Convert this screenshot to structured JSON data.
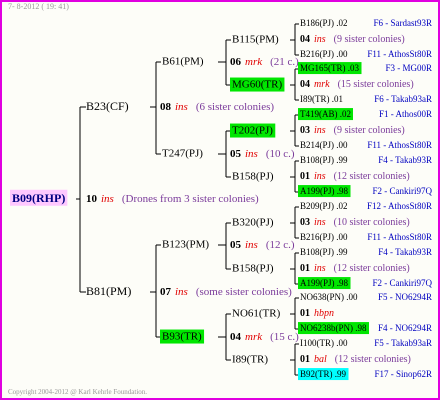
{
  "header": {
    "timestamp": "7- 8-2012 ( 19: 41)"
  },
  "root": {
    "label": "B09(RHP)",
    "highlight": "#ffc8ff",
    "count": "10",
    "type": "ins",
    "note": "(Drones from 3 sister colonies)"
  },
  "generation2": [
    {
      "label": "B23(CF)",
      "count": "08",
      "type": "ins",
      "note": "(6 sister colonies)"
    },
    {
      "label": "B81(PM)",
      "count": "07",
      "type": "ins",
      "note": "(some sister colonies)"
    }
  ],
  "generation3": [
    {
      "label": "B61(PM)",
      "count": "06",
      "type": "mrk",
      "note": "(21 c.)"
    },
    {
      "label": "T247(PJ)",
      "count": "05",
      "type": "ins",
      "note": "(10 c.)"
    },
    {
      "label": "B123(PM)",
      "count": "05",
      "type": "ins",
      "note": "(12 c.)"
    },
    {
      "label": "B93(TR)",
      "highlight": "#00e600",
      "count": "04",
      "type": "mrk",
      "note": "(15 c.)"
    }
  ],
  "generation4": [
    {
      "label": "B115(PM)"
    },
    {
      "label": "MG60(TR)",
      "highlight": "#00e600"
    },
    {
      "label": "T202(PJ)",
      "highlight": "#00e600"
    },
    {
      "label": "B158(PJ)"
    },
    {
      "label": "B320(PJ)"
    },
    {
      "label": "B158(PJ)"
    },
    {
      "label": "NO61(TR)"
    },
    {
      "label": "I89(TR)"
    }
  ],
  "generation5": [
    {
      "father": {
        "label": "B186(PJ) .02",
        "origin": "F6 - Sardast93R"
      },
      "count": "04",
      "type": "ins",
      "note": "(9 sister colonies)",
      "mother": {
        "label": "B216(PJ) .00",
        "origin": "F11 - AthosSt80R"
      }
    },
    {
      "father": {
        "label": "MG165(TR) .03",
        "highlight": "#00e600",
        "origin": "F3 - MG00R"
      },
      "count": "04",
      "type": "mrk",
      "note": "(15 sister colonies)",
      "mother": {
        "label": "I89(TR) .01",
        "origin": "F6 - Takab93aR"
      }
    },
    {
      "father": {
        "label": "T419(AB) .02",
        "highlight": "#00e600",
        "origin": "F1 - Athos00R"
      },
      "count": "03",
      "type": "ins",
      "note": "(9 sister colonies)",
      "mother": {
        "label": "B214(PJ) .00",
        "origin": "F11 - AthosSt80R"
      }
    },
    {
      "father": {
        "label": "B108(PJ) .99",
        "origin": "F4 - Takab93R"
      },
      "count": "01",
      "type": "ins",
      "note": "(12 sister colonies)",
      "mother": {
        "label": "A199(PJ) .98",
        "highlight": "#00e600",
        "origin": "F2 - Cankiri97Q"
      }
    },
    {
      "father": {
        "label": "B209(PJ) .02",
        "origin": "F12 - AthosSt80R"
      },
      "count": "03",
      "type": "ins",
      "note": "(10 sister colonies)",
      "mother": {
        "label": "B216(PJ) .00",
        "origin": "F11 - AthosSt80R"
      }
    },
    {
      "father": {
        "label": "B108(PJ) .99",
        "origin": "F4 - Takab93R"
      },
      "count": "01",
      "type": "ins",
      "note": "(12 sister colonies)",
      "mother": {
        "label": "A199(PJ) .98",
        "highlight": "#00e600",
        "origin": "F2 - Cankiri97Q"
      }
    },
    {
      "father": {
        "label": "NO638(PN) .00",
        "origin": "F5 - NO6294R"
      },
      "count": "01",
      "type": "hbpn",
      "mother": {
        "label": "NO6238b(PN) .98",
        "highlight": "#00e600",
        "origin": "F4 - NO6294R"
      }
    },
    {
      "father": {
        "label": "I100(TR) .00",
        "origin": "F5 - Takab93aR"
      },
      "count": "01",
      "type": "bal",
      "note": "(12 sister colonies)",
      "mother": {
        "label": "B92(TR) .99",
        "highlight": "#00ffff",
        "origin": "F17 - Sinop62R"
      }
    }
  ],
  "footer": {
    "copyright": "Copyright 2004-2012 @ Karl Kehrle Foundation."
  }
}
